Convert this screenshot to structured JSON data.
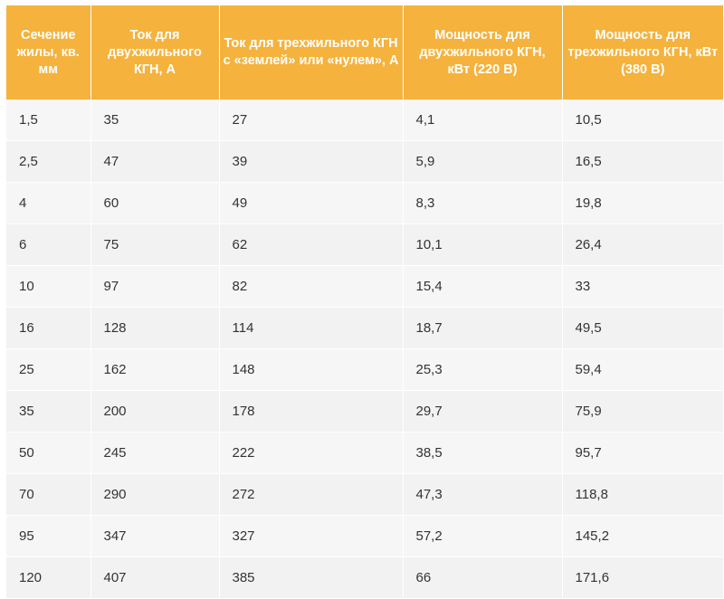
{
  "table": {
    "headers": [
      "Сечение жилы, кв. мм",
      "Ток для двухжильного КГН, А",
      "Ток для трехжильного КГН с «землей» или «нулем», А",
      "Мощность для двухжильного КГН, кВт (220 В)",
      "Мощность для трехжильного КГН, кВт (380 В)"
    ],
    "rows": [
      [
        "1,5",
        "35",
        "27",
        "4,1",
        "10,5"
      ],
      [
        "2,5",
        "47",
        "39",
        "5,9",
        "16,5"
      ],
      [
        "4",
        "60",
        "49",
        "8,3",
        "19,8"
      ],
      [
        "6",
        "75",
        "62",
        "10,1",
        "26,4"
      ],
      [
        "10",
        "97",
        "82",
        "15,4",
        "33"
      ],
      [
        "16",
        "128",
        "114",
        "18,7",
        "49,5"
      ],
      [
        "25",
        "162",
        "148",
        "25,3",
        "59,4"
      ],
      [
        "35",
        "200",
        "178",
        "29,7",
        "75,9"
      ],
      [
        "50",
        "245",
        "222",
        "38,5",
        "95,7"
      ],
      [
        "70",
        "290",
        "272",
        "47,3",
        "118,8"
      ],
      [
        "95",
        "347",
        "327",
        "57,2",
        "145,2"
      ],
      [
        "120",
        "407",
        "385",
        "66",
        "171,6"
      ]
    ]
  },
  "colors": {
    "header_bg": "#f5b23c",
    "header_text": "#ffffff",
    "row_bg": "#f6f6f6",
    "body_text": "#333333"
  }
}
